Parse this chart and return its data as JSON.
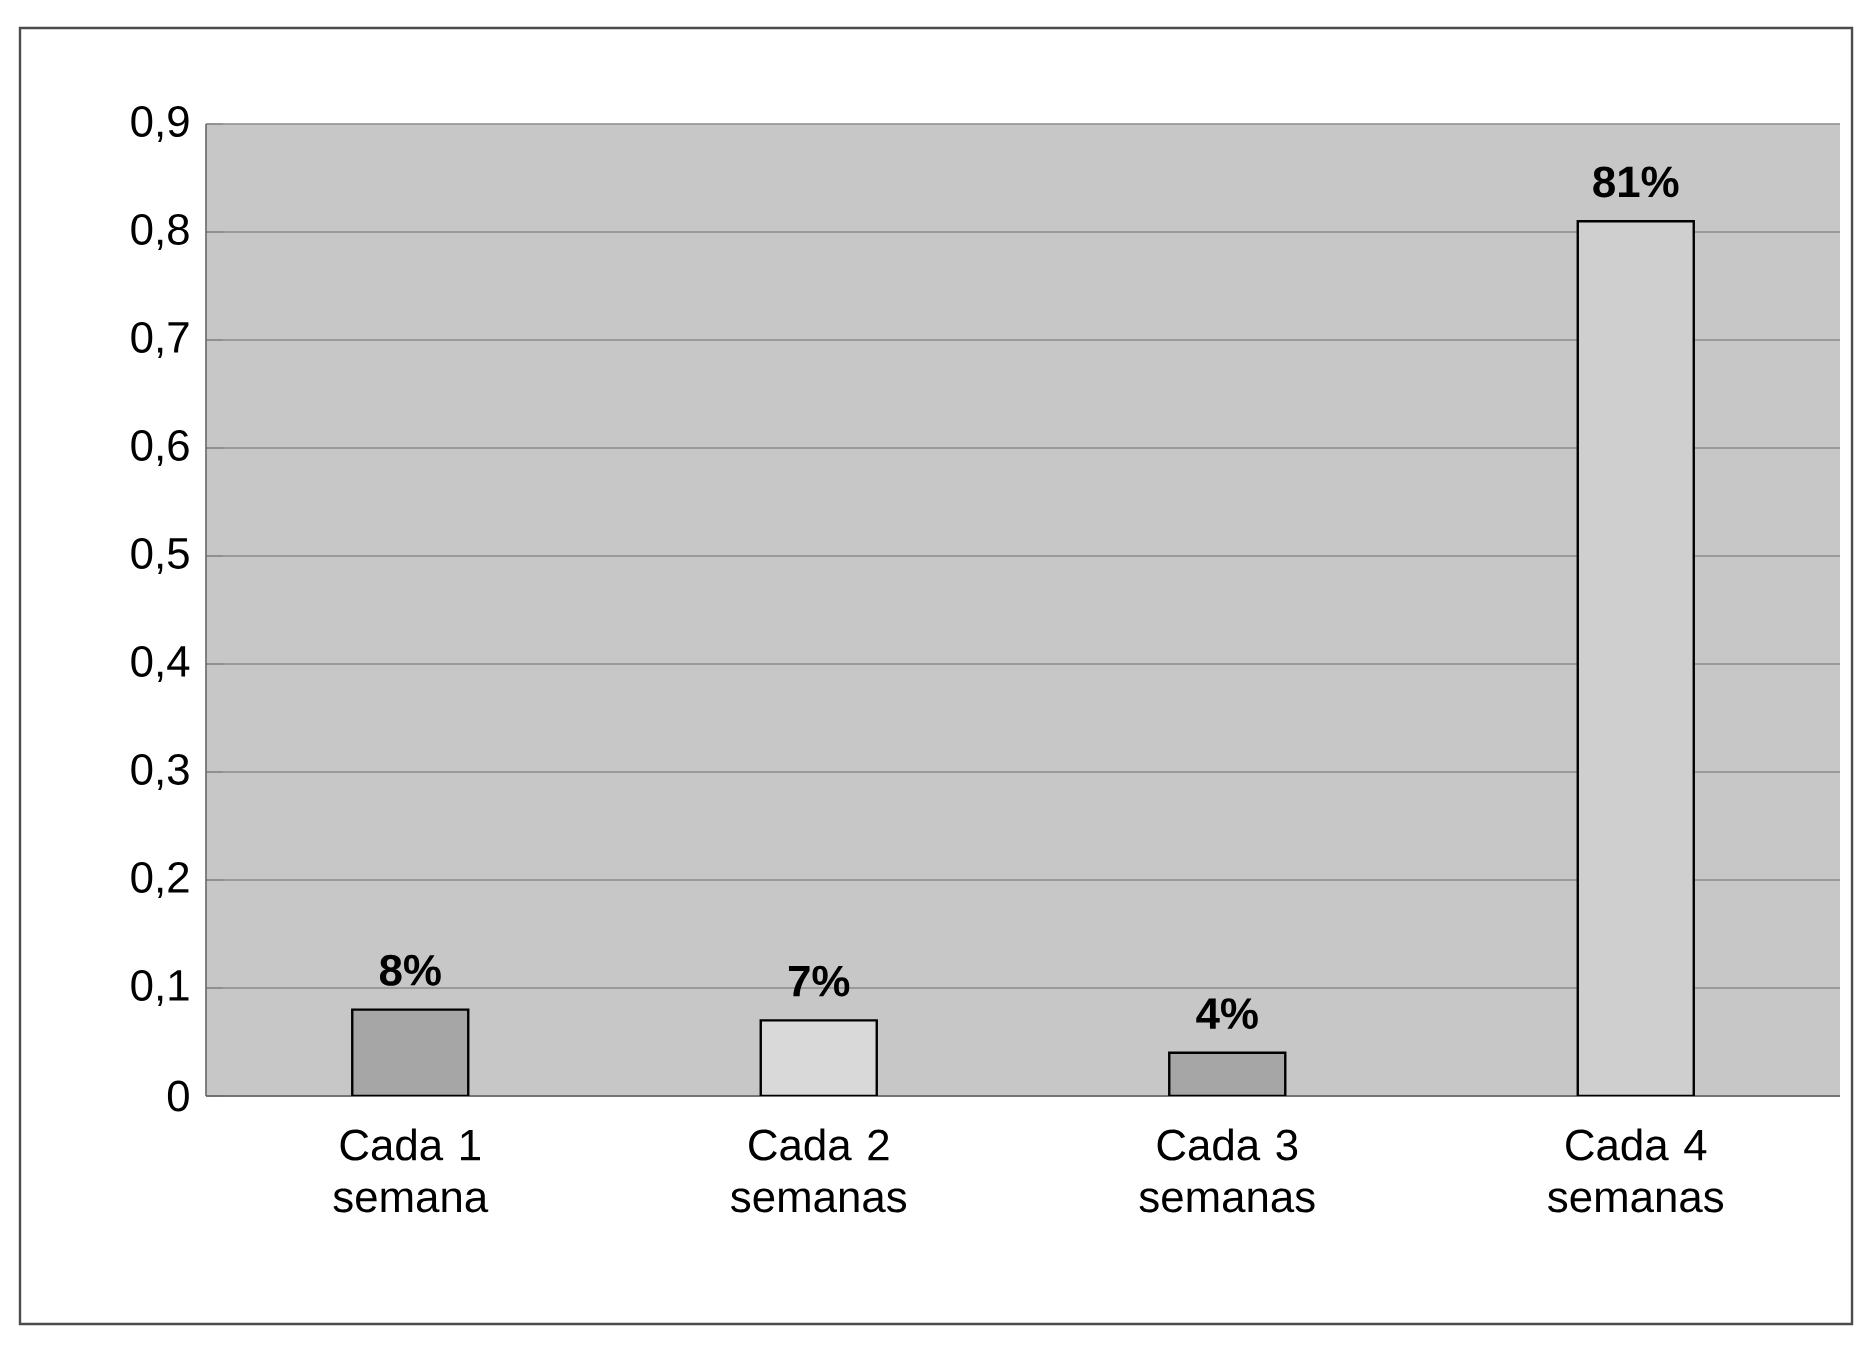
{
  "chart_data": {
    "type": "bar",
    "categories": [
      "Cada 1 semana",
      "Cada 2 semanas",
      "Cada 3 semanas",
      "Cada 4 semanas"
    ],
    "values": [
      0.08,
      0.07,
      0.04,
      0.81
    ],
    "value_labels": [
      "8%",
      "7%",
      "4%",
      "81%"
    ],
    "colors": [
      "#a6a6a6",
      "#d9d9d9",
      "#a6a6a6",
      "#cfcfcf"
    ],
    "ylim": [
      0,
      0.9
    ],
    "yticks": [
      {
        "value": 0,
        "label": "0"
      },
      {
        "value": 0.1,
        "label": "0,1"
      },
      {
        "value": 0.2,
        "label": "0,2"
      },
      {
        "value": 0.3,
        "label": "0,3"
      },
      {
        "value": 0.4,
        "label": "0,4"
      },
      {
        "value": 0.5,
        "label": "0,5"
      },
      {
        "value": 0.6,
        "label": "0,6"
      },
      {
        "value": 0.7,
        "label": "0,7"
      },
      {
        "value": 0.8,
        "label": "0,8"
      },
      {
        "value": 0.9,
        "label": "0,9"
      }
    ],
    "grid": "y"
  }
}
